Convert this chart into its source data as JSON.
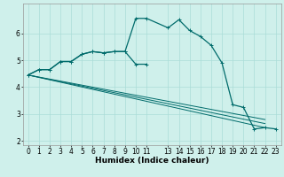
{
  "background_color": "#cff0eb",
  "grid_color": "#aaddd8",
  "line_color": "#006b6b",
  "curve1_x": [
    0,
    1,
    2,
    3,
    4,
    5,
    6,
    7,
    8,
    9,
    10,
    11,
    13,
    14,
    15,
    16,
    17,
    18,
    19,
    20,
    21,
    22,
    23
  ],
  "curve1_y": [
    4.45,
    4.65,
    4.65,
    4.95,
    4.95,
    5.22,
    5.32,
    5.27,
    5.32,
    5.32,
    6.55,
    6.55,
    6.2,
    6.5,
    6.1,
    5.88,
    5.55,
    4.9,
    3.35,
    3.25,
    2.45,
    2.5,
    2.45
  ],
  "curve2_x": [
    0,
    1,
    2,
    3,
    4,
    5,
    6,
    7,
    8,
    9,
    10,
    11
  ],
  "curve2_y": [
    4.45,
    4.65,
    4.65,
    4.95,
    4.95,
    5.22,
    5.32,
    5.27,
    5.32,
    5.32,
    4.85,
    4.85
  ],
  "line1_x": [
    0,
    22
  ],
  "line1_y": [
    4.45,
    2.5
  ],
  "line2_x": [
    0,
    22
  ],
  "line2_y": [
    4.45,
    2.65
  ],
  "line3_x": [
    0,
    22
  ],
  "line3_y": [
    4.45,
    2.8
  ],
  "xlim": [
    -0.5,
    23.5
  ],
  "ylim": [
    1.85,
    7.1
  ],
  "yticks": [
    2,
    3,
    4,
    5,
    6
  ],
  "xticks": [
    0,
    1,
    2,
    3,
    4,
    5,
    6,
    7,
    8,
    9,
    10,
    11,
    13,
    14,
    15,
    16,
    17,
    18,
    19,
    20,
    21,
    22,
    23
  ],
  "xlabel": "Humidex (Indice chaleur)",
  "xlabel_fontsize": 6.5,
  "tick_fontsize": 5.5
}
